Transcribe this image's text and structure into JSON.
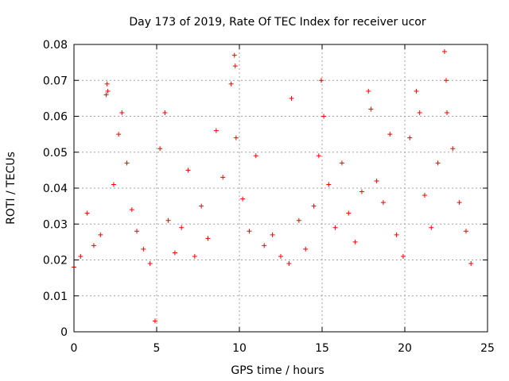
{
  "chart_data": {
    "type": "scatter",
    "title": "Day 173 of 2019, Rate Of TEC Index for receiver ucor",
    "xlabel": "GPS time / hours",
    "ylabel": "ROTI / TECUs",
    "xlim": [
      0,
      25
    ],
    "ylim": [
      0,
      0.08
    ],
    "xticks": [
      0,
      5,
      10,
      15,
      20,
      25
    ],
    "xtick_labels": [
      "0",
      "5",
      "10",
      "15",
      "20",
      "25"
    ],
    "yticks": [
      0,
      0.01,
      0.02,
      0.03,
      0.04,
      0.05,
      0.06,
      0.07,
      0.08
    ],
    "ytick_labels": [
      "0",
      "0.01",
      "0.02",
      "0.03",
      "0.04",
      "0.05",
      "0.06",
      "0.07",
      "0.08"
    ],
    "grid": true,
    "marker": "+",
    "color": "#ff0000",
    "series": [
      {
        "name": "ROTI",
        "x": [
          0.0,
          0.4,
          0.8,
          1.2,
          1.6,
          1.95,
          2.0,
          2.05,
          2.4,
          2.7,
          2.9,
          3.2,
          3.5,
          3.8,
          4.2,
          4.6,
          4.9,
          5.2,
          5.5,
          5.7,
          6.1,
          6.5,
          6.9,
          7.3,
          7.7,
          8.1,
          8.6,
          9.0,
          9.5,
          9.7,
          9.75,
          9.8,
          10.2,
          10.6,
          11.0,
          11.5,
          12.0,
          12.5,
          13.0,
          13.15,
          13.6,
          14.0,
          14.5,
          14.8,
          14.95,
          15.1,
          15.4,
          15.8,
          16.2,
          16.6,
          17.0,
          17.4,
          17.8,
          17.95,
          18.3,
          18.7,
          19.1,
          19.5,
          19.9,
          20.3,
          20.7,
          20.9,
          21.2,
          21.6,
          22.0,
          22.4,
          22.5,
          22.55,
          22.9,
          23.3,
          23.7,
          24.0
        ],
        "y": [
          0.018,
          0.021,
          0.033,
          0.024,
          0.027,
          0.066,
          0.069,
          0.067,
          0.041,
          0.055,
          0.061,
          0.047,
          0.034,
          0.028,
          0.023,
          0.019,
          0.003,
          0.051,
          0.061,
          0.031,
          0.022,
          0.029,
          0.045,
          0.021,
          0.035,
          0.026,
          0.056,
          0.043,
          0.069,
          0.077,
          0.074,
          0.054,
          0.037,
          0.028,
          0.049,
          0.024,
          0.027,
          0.021,
          0.019,
          0.065,
          0.031,
          0.023,
          0.035,
          0.049,
          0.07,
          0.06,
          0.041,
          0.029,
          0.047,
          0.033,
          0.025,
          0.039,
          0.067,
          0.062,
          0.042,
          0.036,
          0.055,
          0.027,
          0.021,
          0.054,
          0.067,
          0.061,
          0.038,
          0.029,
          0.047,
          0.078,
          0.07,
          0.061,
          0.051,
          0.036,
          0.028,
          0.019
        ]
      }
    ]
  }
}
